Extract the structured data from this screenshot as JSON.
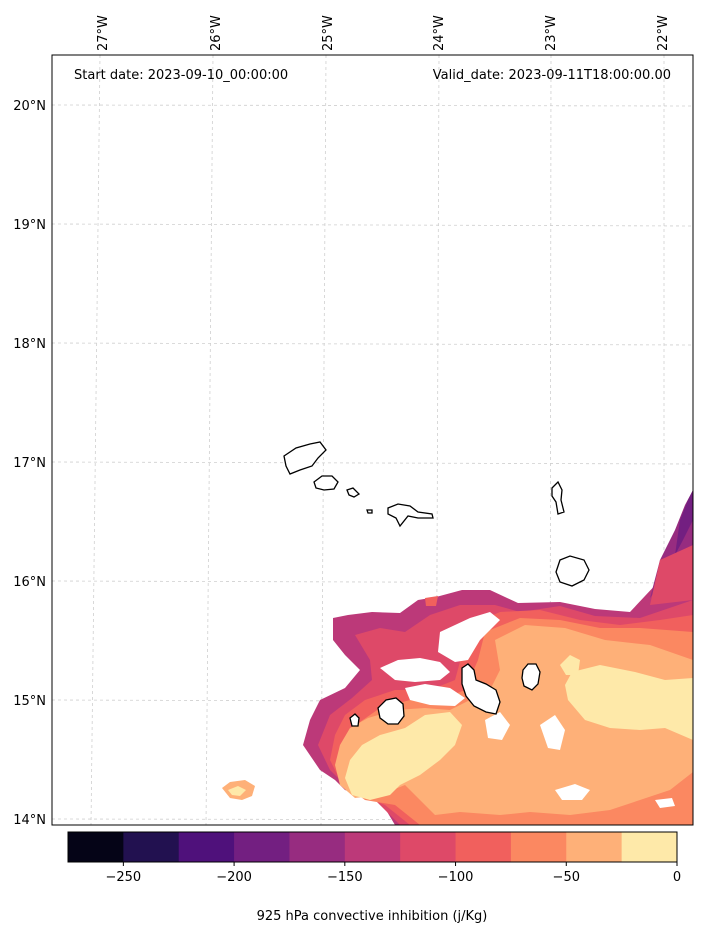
{
  "header": {
    "start_date": "Start date: 2023-09-10_00:00:00",
    "valid_date": "Valid_date: 2023-09-11T18:00:00.00"
  },
  "axes": {
    "lon_labels": [
      "27°W",
      "26°W",
      "25°W",
      "24°W",
      "23°W",
      "22°W"
    ],
    "lat_labels": [
      "20°N",
      "19°N",
      "18°N",
      "17°N",
      "16°N",
      "15°N",
      "14°N"
    ],
    "gridlines": true
  },
  "colorbar": {
    "label": "925 hPa convective inhibition (j/Kg)",
    "tick_labels": [
      "−250",
      "−200",
      "−150",
      "−100",
      "−50",
      "0"
    ],
    "levels": [
      -275,
      -250,
      -225,
      -200,
      -175,
      -150,
      -125,
      -100,
      -75,
      -50,
      -25,
      0
    ],
    "colors": [
      "#050417",
      "#221150",
      "#4f117b",
      "#731f81",
      "#972c80",
      "#bc3979",
      "#de4968",
      "#f1605d",
      "#fb8861",
      "#feb078",
      "#fee9a9"
    ]
  },
  "map": {
    "projection": "lat-lon",
    "extent_lon": [
      -27.3,
      -21.9
    ],
    "extent_lat": [
      13.95,
      20.4
    ],
    "colormap": "magma"
  }
}
